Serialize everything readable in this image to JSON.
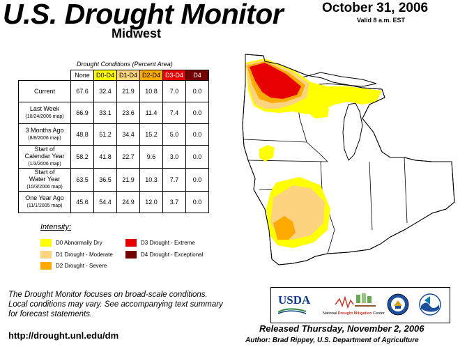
{
  "header": {
    "title": "U.S. Drought Monitor",
    "region": "Midwest",
    "date": "October 31, 2006",
    "valid": "Valid 8 a.m. EST"
  },
  "table": {
    "caption": "Drought Conditions (Percent Area)",
    "columns": [
      "None",
      "D0-D4",
      "D1-D4",
      "D2-D4",
      "D3-D4",
      "D4"
    ],
    "column_colors": [
      "#ffffff",
      "#ffff00",
      "#fcd37f",
      "#ffaa00",
      "#e60000",
      "#730000"
    ],
    "rows": [
      {
        "label": "Current",
        "sub": "",
        "label2": "",
        "values": [
          "67.6",
          "32.4",
          "21.9",
          "10.8",
          "7.0",
          "0.0"
        ]
      },
      {
        "label": "Last Week",
        "sub": "(10/24/2006 map)",
        "label2": "",
        "values": [
          "66.9",
          "33.1",
          "23.6",
          "11.4",
          "7.4",
          "0.0"
        ]
      },
      {
        "label": "3 Months Ago",
        "sub": "(8/8/2006 map)",
        "label2": "",
        "values": [
          "48.8",
          "51.2",
          "34.4",
          "15.2",
          "5.0",
          "0.0"
        ]
      },
      {
        "label": "Start of",
        "label2": "Calendar Year",
        "sub": "(1/3/2006 map)",
        "values": [
          "58.2",
          "41.8",
          "22.7",
          "9.6",
          "3.0",
          "0.0"
        ]
      },
      {
        "label": "Start of",
        "label2": "Water Year",
        "sub": "(10/3/2006 map)",
        "values": [
          "63.5",
          "36.5",
          "21.9",
          "10.3",
          "7.7",
          "0.0"
        ]
      },
      {
        "label": "One Year Ago",
        "sub": "(11/1/2005 map)",
        "label2": "",
        "values": [
          "45.6",
          "54.4",
          "24.9",
          "12.0",
          "3.7",
          "0.0"
        ]
      }
    ]
  },
  "legend": {
    "title": "Intensity:",
    "items": [
      {
        "label": "D0 Abnormally Dry",
        "color": "#ffff00"
      },
      {
        "label": "D1 Drought - Moderate",
        "color": "#fcd37f"
      },
      {
        "label": "D2 Drought - Severe",
        "color": "#ffaa00"
      },
      {
        "label": "D3 Drought - Extreme",
        "color": "#e60000"
      },
      {
        "label": "D4 Drought - Exceptional",
        "color": "#730000"
      }
    ]
  },
  "footer": {
    "note_lines": [
      "The Drought Monitor focuses on broad-scale conditions.",
      "Local conditions may vary. See accompanying text summary",
      "for forecast statements."
    ],
    "url": "http://drought.unl.edu/dm",
    "released": "Released Thursday, November 2, 2006",
    "author": "Author: Brad Rippey, U.S. Department of Agriculture"
  },
  "logos": {
    "usda": "USDA",
    "ndmc_prefix": "National",
    "ndmc_name": "Drought Mitigation",
    "ndmc_suffix": "Center"
  }
}
